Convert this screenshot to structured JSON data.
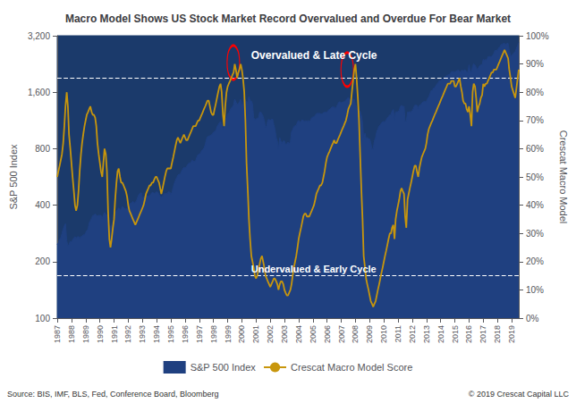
{
  "chart_data": {
    "type": "line",
    "title": "Macro Model Shows US Stock Market Record Overvalued and Overdue For Bear Market",
    "x": [
      1987.0,
      1987.08,
      1987.17,
      1987.25,
      1987.33,
      1987.42,
      1987.5,
      1987.58,
      1987.67,
      1987.75,
      1987.83,
      1987.92,
      1988.0,
      1988.08,
      1988.17,
      1988.25,
      1988.33,
      1988.42,
      1988.5,
      1988.58,
      1988.67,
      1988.75,
      1988.83,
      1988.92,
      1989.0,
      1989.08,
      1989.17,
      1989.25,
      1989.33,
      1989.42,
      1989.5,
      1989.58,
      1989.67,
      1989.75,
      1989.83,
      1989.92,
      1990.0,
      1990.08,
      1990.17,
      1990.25,
      1990.33,
      1990.42,
      1990.5,
      1990.58,
      1990.67,
      1990.75,
      1990.83,
      1990.92,
      1991.0,
      1991.08,
      1991.17,
      1991.25,
      1991.33,
      1991.42,
      1991.5,
      1991.58,
      1991.67,
      1991.75,
      1991.83,
      1991.92,
      1992.0,
      1992.08,
      1992.17,
      1992.25,
      1992.33,
      1992.42,
      1992.5,
      1992.58,
      1992.67,
      1992.75,
      1992.83,
      1992.92,
      1993.0,
      1993.08,
      1993.17,
      1993.25,
      1993.33,
      1993.42,
      1993.5,
      1993.58,
      1993.67,
      1993.75,
      1993.83,
      1993.92,
      1994.0,
      1994.08,
      1994.17,
      1994.25,
      1994.33,
      1994.42,
      1994.5,
      1994.58,
      1994.67,
      1994.75,
      1994.83,
      1994.92,
      1995.0,
      1995.08,
      1995.17,
      1995.25,
      1995.33,
      1995.42,
      1995.5,
      1995.58,
      1995.67,
      1995.75,
      1995.83,
      1995.92,
      1996.0,
      1996.08,
      1996.17,
      1996.25,
      1996.33,
      1996.42,
      1996.5,
      1996.58,
      1996.67,
      1996.75,
      1996.83,
      1996.92,
      1997.0,
      1997.08,
      1997.17,
      1997.25,
      1997.33,
      1997.42,
      1997.5,
      1997.58,
      1997.67,
      1997.75,
      1997.83,
      1997.92,
      1998.0,
      1998.08,
      1998.17,
      1998.25,
      1998.33,
      1998.42,
      1998.5,
      1998.58,
      1998.67,
      1998.75,
      1998.83,
      1998.92,
      1999.0,
      1999.08,
      1999.17,
      1999.25,
      1999.33,
      1999.42,
      1999.5,
      1999.58,
      1999.67,
      1999.75,
      1999.83,
      1999.92,
      2000.0,
      2000.08,
      2000.17,
      2000.25,
      2000.33,
      2000.42,
      2000.5,
      2000.58,
      2000.67,
      2000.75,
      2000.83,
      2000.92,
      2001.0,
      2001.08,
      2001.17,
      2001.25,
      2001.33,
      2001.42,
      2001.5,
      2001.58,
      2001.67,
      2001.75,
      2001.83,
      2001.92,
      2002.0,
      2002.08,
      2002.17,
      2002.25,
      2002.33,
      2002.42,
      2002.5,
      2002.58,
      2002.67,
      2002.75,
      2002.83,
      2002.92,
      2003.0,
      2003.08,
      2003.17,
      2003.25,
      2003.33,
      2003.42,
      2003.5,
      2003.58,
      2003.67,
      2003.75,
      2003.83,
      2003.92,
      2004.0,
      2004.08,
      2004.17,
      2004.25,
      2004.33,
      2004.42,
      2004.5,
      2004.58,
      2004.67,
      2004.75,
      2004.83,
      2004.92,
      2005.0,
      2005.08,
      2005.17,
      2005.25,
      2005.33,
      2005.42,
      2005.5,
      2005.58,
      2005.67,
      2005.75,
      2005.83,
      2005.92,
      2006.0,
      2006.08,
      2006.17,
      2006.25,
      2006.33,
      2006.42,
      2006.5,
      2006.58,
      2006.67,
      2006.75,
      2006.83,
      2006.92,
      2007.0,
      2007.08,
      2007.17,
      2007.25,
      2007.33,
      2007.42,
      2007.5,
      2007.58,
      2007.67,
      2007.75,
      2007.83,
      2007.92,
      2008.0,
      2008.08,
      2008.17,
      2008.25,
      2008.33,
      2008.42,
      2008.5,
      2008.58,
      2008.67,
      2008.75,
      2008.83,
      2008.92,
      2009.0,
      2009.08,
      2009.17,
      2009.25,
      2009.33,
      2009.42,
      2009.5,
      2009.58,
      2009.67,
      2009.75,
      2009.83,
      2009.92,
      2010.0,
      2010.08,
      2010.17,
      2010.25,
      2010.33,
      2010.42,
      2010.5,
      2010.58,
      2010.67,
      2010.75,
      2010.83,
      2010.92,
      2011.0,
      2011.08,
      2011.17,
      2011.25,
      2011.33,
      2011.42,
      2011.5,
      2011.58,
      2011.67,
      2011.75,
      2011.83,
      2011.92,
      2012.0,
      2012.08,
      2012.17,
      2012.25,
      2012.33,
      2012.42,
      2012.5,
      2012.58,
      2012.67,
      2012.75,
      2012.83,
      2012.92,
      2013.0,
      2013.08,
      2013.17,
      2013.25,
      2013.33,
      2013.42,
      2013.5,
      2013.58,
      2013.67,
      2013.75,
      2013.83,
      2013.92,
      2014.0,
      2014.08,
      2014.17,
      2014.25,
      2014.33,
      2014.42,
      2014.5,
      2014.58,
      2014.67,
      2014.75,
      2014.83,
      2014.92,
      2015.0,
      2015.08,
      2015.17,
      2015.25,
      2015.33,
      2015.42,
      2015.5,
      2015.58,
      2015.67,
      2015.75,
      2015.83,
      2015.92,
      2016.0,
      2016.08,
      2016.17,
      2016.25,
      2016.33,
      2016.42,
      2016.5,
      2016.58,
      2016.67,
      2016.75,
      2016.83,
      2016.92,
      2017.0,
      2017.08,
      2017.17,
      2017.25,
      2017.33,
      2017.42,
      2017.5,
      2017.58,
      2017.67,
      2017.75,
      2017.83,
      2017.92,
      2018.0,
      2018.08,
      2018.17,
      2018.25,
      2018.33,
      2018.42,
      2018.5,
      2018.58,
      2018.67,
      2018.75,
      2018.83,
      2018.92,
      2019.0,
      2019.25,
      2019.5
    ],
    "xlim": [
      1987,
      2019.5
    ],
    "xticks": [
      1987,
      1988,
      1989,
      1990,
      1991,
      1992,
      1993,
      1994,
      1995,
      1996,
      1997,
      1998,
      1999,
      2000,
      2001,
      2002,
      2003,
      2004,
      2005,
      2006,
      2007,
      2008,
      2009,
      2010,
      2011,
      2012,
      2013,
      2014,
      2015,
      2016,
      2017,
      2018,
      2019
    ],
    "log": "y",
    "ylim": [
      100,
      3200
    ],
    "yticks": [
      100,
      200,
      400,
      800,
      {
        "value": 1600,
        "label": "1,600"
      },
      {
        "value": 3200,
        "label": "3,200"
      }
    ],
    "y_label": "S&P 500 Index",
    "y2lim": [
      0,
      100
    ],
    "y2ticks": [
      {
        "value": 0,
        "label": "0%"
      },
      {
        "value": 10,
        "label": "10%"
      },
      {
        "value": 20,
        "label": "20%"
      },
      {
        "value": 30,
        "label": "30%"
      },
      {
        "value": 40,
        "label": "40%"
      },
      {
        "value": 50,
        "label": "50%"
      },
      {
        "value": 60,
        "label": "60%"
      },
      {
        "value": 70,
        "label": "70%"
      },
      {
        "value": 80,
        "label": "80%"
      },
      {
        "value": 90,
        "label": "90%"
      },
      {
        "value": 100,
        "label": "100%"
      }
    ],
    "y2_label": "Crescat Macro Model",
    "grid": false,
    "legend": "bottom",
    "annotations": [
      "Overvalued & Late Cycle",
      "Undervalued & Early Cycle"
    ],
    "source": "Source: BIS, IMF, BLS, Fed, Conference Board, Bloomberg",
    "copyright": "© 2019 Crescat Capital LLC",
    "series": [
      {
        "name": "S&P 500 Index",
        "type": "area",
        "color": "#1f4080",
        "values": [
          247,
          252,
          264,
          268,
          282,
          299,
          311,
          319,
          258,
          243,
          247,
          257,
          255,
          261,
          267,
          272,
          267,
          271,
          272,
          267,
          272,
          272,
          278,
          277,
          285,
          293,
          298,
          322,
          330,
          341,
          352,
          353,
          360,
          353,
          349,
          353,
          353,
          353,
          340,
          355,
          366,
          358,
          355,
          322,
          315,
          306,
          315,
          326,
          334,
          363,
          373,
          380,
          387,
          377,
          379,
          393,
          389,
          383,
          382,
          383,
          406,
          407,
          408,
          413,
          419,
          408,
          416,
          421,
          441,
          455,
          463,
          466,
          438,
          441,
          452,
          450,
          448,
          447,
          450,
          458,
          467,
          468,
          462,
          466,
          472,
          468,
          456,
          447,
          443,
          448,
          458,
          462,
          461,
          462,
          472,
          470,
          459,
          468,
          500,
          525,
          544,
          562,
          579,
          584,
          584,
          607,
          621,
          636,
          631,
          636,
          656,
          668,
          670,
          678,
          695,
          686,
          686,
          689,
          721,
          744,
          748,
          754,
          782,
          791,
          805,
          839,
          895,
          927,
          931,
          939,
          946,
          955,
          980,
          990,
          995,
          1049,
          1072,
          1100,
          1120,
          1083,
          1020,
          1043,
          1139,
          1175,
          1229,
          1238,
          1286,
          1315,
          1335,
          1372,
          1469,
          1420,
          1379,
          1393,
          1417,
          1469,
          1394,
          1366,
          1499,
          1452,
          1420,
          1420,
          1517,
          1436,
          1436,
          1387,
          1173,
          1140,
          1148,
          1166,
          1160,
          1249,
          1255,
          1224,
          1190,
          1131,
          1040,
          1059,
          1139,
          1148,
          1130,
          1147,
          1148,
          1075,
          1020,
          916,
          879,
          800,
          916,
          879,
          855,
          879,
          879,
          841,
          848,
          868,
          848,
          868,
          987,
          1010,
          1050,
          1060,
          1060,
          1112,
          1132,
          1107,
          1121,
          1141,
          1130,
          1120,
          1130,
          1115,
          1131,
          1114,
          1132,
          1170,
          1181,
          1181,
          1204,
          1230,
          1234,
          1234,
          1234,
          1220,
          1228,
          1247,
          1249,
          1248,
          1248,
          1280,
          1295,
          1310,
          1330,
          1335,
          1335,
          1304,
          1340,
          1377,
          1418,
          1418,
          1406,
          1416,
          1420,
          1435,
          1450,
          1481,
          1503,
          1455,
          1468,
          1468,
          1468,
          1468,
          1378,
          1330,
          1258,
          1278,
          1267,
          1200,
          1100,
          903,
          968,
          903,
          919,
          900,
          903,
          857,
          798,
          800,
          876,
          919,
          987,
          1020,
          1057,
          1069,
          1095,
          1115,
          1115,
          1115,
          1140,
          1169,
          1187,
          1213,
          1213,
          1270,
          1295,
          1141,
          1258,
          1258,
          1257,
          1282,
          1345,
          1363,
          1345,
          1345,
          1119,
          1119,
          1253,
          1253,
          1258,
          1258,
          1278,
          1310,
          1363,
          1363,
          1363,
          1310,
          1363,
          1363,
          1400,
          1418,
          1426,
          1426,
          1426,
          1480,
          1514,
          1569,
          1633,
          1631,
          1685,
          1685,
          1737,
          1775,
          1805,
          1848,
          1848,
          1872,
          1883,
          1923,
          1930,
          1960,
          1973,
          1985,
          2003,
          2059,
          2059,
          2059,
          2059,
          2067,
          2090,
          2100,
          2063,
          2044,
          2107,
          2067,
          2104,
          2099,
          2044,
          2044,
          2238,
          2071,
          2059,
          2199,
          2270,
          2230,
          2175,
          2097,
          2168,
          2215,
          2239,
          2239,
          2395,
          2363,
          2395,
          2362,
          2472,
          2476,
          2477,
          2479,
          2519,
          2575,
          2675,
          2674,
          2674,
          2757,
          2784,
          2872,
          2873,
          2913,
          2914,
          2872,
          2914,
          2914,
          2671,
          2507,
          2506,
          2640,
          2945
        ]
      },
      {
        "name": "Crescat Macro Model Score",
        "type": "line",
        "color": "#c8960c",
        "axis": "y2",
        "reference_lines": [
          85,
          15
        ],
        "circled": [
          {
            "x": 1999.4,
            "y": 90.5
          },
          {
            "x": 2007.42,
            "y": 88
          }
        ],
        "values": [
          50,
          52,
          54,
          56,
          58,
          62,
          68,
          75,
          80,
          75,
          65,
          60,
          55,
          50,
          45,
          40,
          38,
          40,
          45,
          52,
          58,
          62,
          65,
          68,
          70,
          72,
          73,
          74,
          75,
          73,
          72,
          72,
          71,
          68,
          62,
          58,
          55,
          52,
          50,
          55,
          60,
          58,
          52,
          38,
          28,
          25,
          28,
          32,
          35,
          42,
          48,
          52,
          53,
          50,
          48,
          48,
          47,
          46,
          45,
          43,
          40,
          38,
          37,
          36,
          35,
          34,
          33,
          34,
          35,
          36,
          37,
          38,
          39,
          40,
          42,
          44,
          45,
          46,
          47,
          47,
          48,
          48,
          49,
          50,
          50,
          49,
          48,
          46,
          44,
          46,
          48,
          50,
          52,
          53,
          53,
          53,
          53,
          55,
          57,
          59,
          61,
          63,
          64,
          63,
          62,
          63,
          64,
          65,
          64,
          63,
          63,
          64,
          65,
          66,
          67,
          68,
          68,
          68,
          69,
          70,
          70,
          71,
          72,
          73,
          74,
          75,
          76,
          77,
          77,
          75,
          73,
          72,
          72,
          74,
          76,
          78,
          80,
          82,
          83,
          80,
          72,
          68,
          75,
          80,
          82,
          83,
          84,
          85,
          86,
          87,
          90,
          88,
          85,
          87,
          88,
          90,
          88,
          85,
          80,
          70,
          55,
          45,
          35,
          28,
          22,
          20,
          18,
          15,
          14,
          15,
          17,
          19,
          21,
          22,
          20,
          18,
          15,
          14,
          13,
          12,
          11,
          12,
          13,
          14,
          14,
          13,
          12,
          10,
          12,
          13,
          13,
          12,
          10,
          9,
          8,
          8,
          9,
          10,
          12,
          15,
          18,
          20,
          22,
          25,
          28,
          30,
          32,
          34,
          36,
          37,
          37,
          36,
          36,
          36,
          37,
          38,
          39,
          40,
          42,
          44,
          45,
          46,
          47,
          47,
          48,
          50,
          52,
          55,
          57,
          58,
          59,
          60,
          61,
          62,
          63,
          62,
          62,
          63,
          64,
          65,
          66,
          67,
          68,
          69,
          70,
          72,
          74,
          75,
          76,
          80,
          84,
          88,
          90,
          85,
          78,
          70,
          58,
          45,
          35,
          22,
          18,
          14,
          12,
          10,
          8,
          6,
          5,
          4,
          5,
          6,
          8,
          10,
          12,
          14,
          16,
          18,
          20,
          22,
          24,
          26,
          28,
          30,
          30,
          32,
          33,
          28,
          35,
          38,
          40,
          42,
          45,
          46,
          45,
          44,
          36,
          32,
          42,
          44,
          46,
          48,
          50,
          52,
          54,
          54,
          52,
          50,
          53,
          55,
          57,
          58,
          59,
          60,
          62,
          65,
          67,
          68,
          69,
          70,
          71,
          72,
          73,
          74,
          75,
          76,
          77,
          78,
          79,
          80,
          81,
          82,
          83,
          83,
          83,
          84,
          84,
          84,
          82,
          82,
          83,
          84,
          85,
          82,
          80,
          77,
          76,
          76,
          74,
          73,
          75,
          72,
          68,
          80,
          83,
          82,
          78,
          73,
          75,
          76,
          78,
          79,
          83,
          82,
          83,
          83,
          84,
          85,
          86,
          87,
          87,
          88,
          88,
          88,
          89,
          90,
          91,
          92,
          93,
          94,
          95,
          94,
          93,
          92,
          88,
          85,
          82,
          78,
          88
        ]
      }
    ]
  }
}
